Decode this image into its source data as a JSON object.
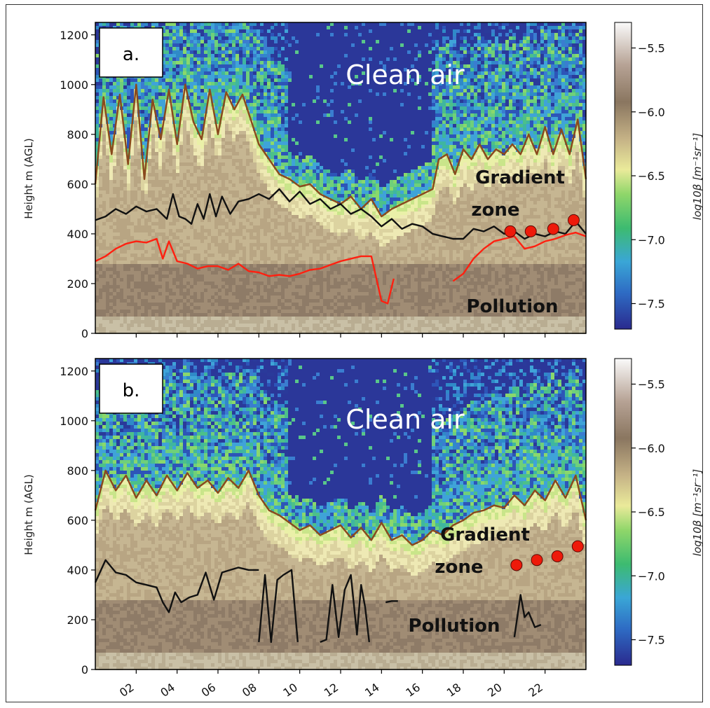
{
  "figure": {
    "ylabel": "Height m (AGL)",
    "colorbar_label": "log10β [m⁻¹sr⁻¹]",
    "colorbar_ticks": [
      "−5.5",
      "−6.0",
      "−6.5",
      "−7.0",
      "−7.5"
    ],
    "colorbar_values": [
      -5.5,
      -6.0,
      -6.5,
      -7.0,
      -7.5
    ],
    "colorbar_range": [
      -7.7,
      -5.3
    ],
    "colors": {
      "brown_line": "#8a4a1e",
      "black_line": "#111111",
      "red_line": "#ff2010",
      "marker": "#ee1a0a",
      "clean_blue": "#2a3a9a"
    }
  },
  "chart_data": [
    {
      "type": "heatmap",
      "panel_label": "a.",
      "annotations": [
        "Clean air",
        "Gradient",
        "zone",
        "Pollution"
      ],
      "xlabel": "",
      "xticks": [
        "02",
        "04",
        "06",
        "08",
        "10",
        "12",
        "14",
        "16",
        "18",
        "20",
        "22"
      ],
      "xtick_values": [
        2,
        4,
        6,
        8,
        10,
        12,
        14,
        16,
        18,
        20,
        22
      ],
      "xlim": [
        0,
        24
      ],
      "yticks": [
        "0",
        "200",
        "400",
        "600",
        "800",
        "1000",
        "1200"
      ],
      "ytick_values": [
        0,
        200,
        400,
        600,
        800,
        1000,
        1200
      ],
      "ylim": [
        0,
        1250
      ],
      "series": [
        {
          "color": "#8a4a1e",
          "x": [
            0,
            0.4,
            0.8,
            1.2,
            1.6,
            2.0,
            2.4,
            2.8,
            3.2,
            3.6,
            4.0,
            4.4,
            4.8,
            5.2,
            5.6,
            6.0,
            6.4,
            6.8,
            7.2,
            7.6,
            8.0,
            8.5,
            9.0,
            9.5,
            10.0,
            10.5,
            11.0,
            11.5,
            12.0,
            12.5,
            13.0,
            13.5,
            14.0,
            14.5,
            15.0,
            15.5,
            16.0,
            16.5,
            16.8,
            17.2,
            17.6,
            18.0,
            18.4,
            18.8,
            19.2,
            19.6,
            20.0,
            20.4,
            20.8,
            21.2,
            21.6,
            22.0,
            22.4,
            22.8,
            23.2,
            23.6,
            24.0
          ],
          "y": [
            600,
            950,
            720,
            960,
            680,
            1000,
            620,
            940,
            780,
            980,
            760,
            1000,
            850,
            780,
            980,
            800,
            970,
            900,
            960,
            860,
            760,
            700,
            640,
            620,
            590,
            600,
            560,
            540,
            520,
            550,
            500,
            540,
            470,
            500,
            520,
            540,
            560,
            580,
            700,
            720,
            640,
            740,
            700,
            760,
            700,
            740,
            720,
            760,
            720,
            800,
            720,
            830,
            720,
            820,
            720,
            860,
            620
          ]
        },
        {
          "color": "#111111",
          "x": [
            0,
            0.5,
            1.0,
            1.5,
            2.0,
            2.5,
            3.0,
            3.5,
            3.8,
            4.1,
            4.4,
            4.7,
            5.0,
            5.3,
            5.6,
            5.9,
            6.2,
            6.6,
            7.0,
            7.5,
            8.0,
            8.5,
            9.0,
            9.5,
            10.0,
            10.5,
            11.0,
            11.5,
            12.0,
            12.5,
            13.0,
            13.5,
            14.0,
            14.5,
            15.0,
            15.5,
            16.0,
            16.5,
            17.0,
            17.5,
            18.0,
            18.5,
            19.0,
            19.5,
            20.0,
            20.5,
            21.0,
            21.5,
            22.0,
            22.5,
            23.0,
            23.5,
            24.0
          ],
          "y": [
            455,
            470,
            500,
            480,
            510,
            490,
            500,
            460,
            560,
            470,
            460,
            440,
            520,
            460,
            560,
            470,
            550,
            480,
            530,
            540,
            560,
            540,
            580,
            530,
            570,
            520,
            540,
            500,
            520,
            480,
            500,
            470,
            430,
            460,
            420,
            440,
            430,
            400,
            390,
            380,
            380,
            420,
            410,
            430,
            400,
            410,
            380,
            400,
            390,
            410,
            400,
            450,
            400
          ]
        },
        {
          "color": "#ff2010",
          "x": [
            0,
            0.5,
            1.0,
            1.5,
            2.0,
            2.5,
            3.0,
            3.3,
            3.6,
            4.0,
            4.5,
            5.0,
            5.5,
            6.0,
            6.5,
            7.0,
            7.5,
            8.0,
            8.5,
            9.0,
            9.5,
            10.0,
            10.5,
            11.0,
            11.5,
            12.0,
            12.5,
            13.0,
            13.5,
            14.0,
            14.3,
            14.6
          ],
          "y": [
            290,
            310,
            340,
            360,
            370,
            365,
            380,
            300,
            370,
            290,
            280,
            260,
            270,
            270,
            255,
            280,
            250,
            245,
            230,
            235,
            230,
            240,
            255,
            260,
            275,
            290,
            300,
            310,
            310,
            130,
            120,
            220
          ]
        },
        {
          "color": "#ff2010",
          "x": [
            17.5,
            18.0,
            18.5,
            19.0,
            19.5,
            20.0,
            20.5,
            21.0,
            21.5,
            22.0,
            22.5,
            23.0,
            23.5,
            24.0
          ],
          "y": [
            210,
            240,
            300,
            340,
            370,
            380,
            390,
            340,
            350,
            370,
            380,
            395,
            405,
            390
          ]
        }
      ],
      "points": {
        "x": [
          20.3,
          21.3,
          22.4,
          23.4
        ],
        "y": [
          410,
          410,
          420,
          455
        ]
      }
    },
    {
      "type": "heatmap",
      "panel_label": "b.",
      "annotations": [
        "Clean air",
        "Gradient",
        "zone",
        "Pollution"
      ],
      "xlabel": "",
      "xticks": [
        "02",
        "04",
        "06",
        "08",
        "10",
        "12",
        "14",
        "16",
        "18",
        "20",
        "22"
      ],
      "xtick_values": [
        2,
        4,
        6,
        8,
        10,
        12,
        14,
        16,
        18,
        20,
        22
      ],
      "xlim": [
        0,
        24
      ],
      "yticks": [
        "0",
        "200",
        "400",
        "600",
        "800",
        "1000",
        "1200"
      ],
      "ytick_values": [
        0,
        200,
        400,
        600,
        800,
        1000,
        1200
      ],
      "ylim": [
        0,
        1250
      ],
      "series": [
        {
          "color": "#8a4a1e",
          "x": [
            0,
            0.5,
            1.0,
            1.5,
            2.0,
            2.5,
            3.0,
            3.5,
            4.0,
            4.5,
            5.0,
            5.5,
            6.0,
            6.5,
            7.0,
            7.5,
            8.0,
            8.5,
            9.0,
            9.5,
            10.0,
            10.5,
            11.0,
            11.5,
            12.0,
            12.5,
            13.0,
            13.5,
            14.0,
            14.5,
            15.0,
            15.5,
            16.0,
            16.5,
            17.0,
            17.5,
            18.0,
            18.5,
            19.0,
            19.5,
            20.0,
            20.5,
            21.0,
            21.5,
            22.0,
            22.5,
            23.0,
            23.5,
            24.0
          ],
          "y": [
            640,
            800,
            720,
            780,
            690,
            760,
            700,
            780,
            720,
            790,
            730,
            760,
            710,
            770,
            730,
            800,
            700,
            640,
            620,
            590,
            560,
            580,
            540,
            560,
            580,
            530,
            570,
            520,
            590,
            520,
            540,
            500,
            520,
            560,
            540,
            580,
            600,
            630,
            640,
            660,
            650,
            700,
            660,
            720,
            680,
            760,
            690,
            780,
            600
          ]
        },
        {
          "color": "#111111",
          "x": [
            0,
            0.5,
            1.0,
            1.5,
            2.0,
            2.5,
            3.0,
            3.3,
            3.6,
            3.9,
            4.2,
            4.6,
            5.0,
            5.4,
            5.8,
            6.2,
            6.6,
            7.0,
            7.5,
            8.0
          ],
          "y": [
            350,
            440,
            390,
            380,
            350,
            340,
            330,
            270,
            230,
            310,
            270,
            290,
            300,
            390,
            280,
            390,
            400,
            410,
            400,
            400
          ]
        },
        {
          "color": "#111111",
          "x": [
            8.0,
            8.3,
            8.6,
            8.9,
            9.2,
            9.6,
            9.9
          ],
          "y": [
            110,
            380,
            110,
            360,
            380,
            400,
            110
          ]
        },
        {
          "color": "#111111",
          "x": [
            11.0,
            11.3,
            11.6,
            11.9,
            12.2,
            12.5,
            12.8,
            13.0,
            13.2,
            13.4
          ],
          "y": [
            110,
            120,
            340,
            130,
            320,
            380,
            140,
            340,
            250,
            110
          ]
        },
        {
          "color": "#111111",
          "x": [
            14.2,
            14.5,
            14.8
          ],
          "y": [
            270,
            275,
            275
          ]
        },
        {
          "color": "#111111",
          "x": [
            20.5,
            20.8,
            21.0,
            21.2,
            21.5,
            21.8
          ],
          "y": [
            130,
            300,
            210,
            230,
            170,
            180
          ]
        }
      ],
      "points": {
        "x": [
          20.6,
          21.6,
          22.6,
          23.6
        ],
        "y": [
          420,
          440,
          455,
          495
        ]
      }
    }
  ]
}
